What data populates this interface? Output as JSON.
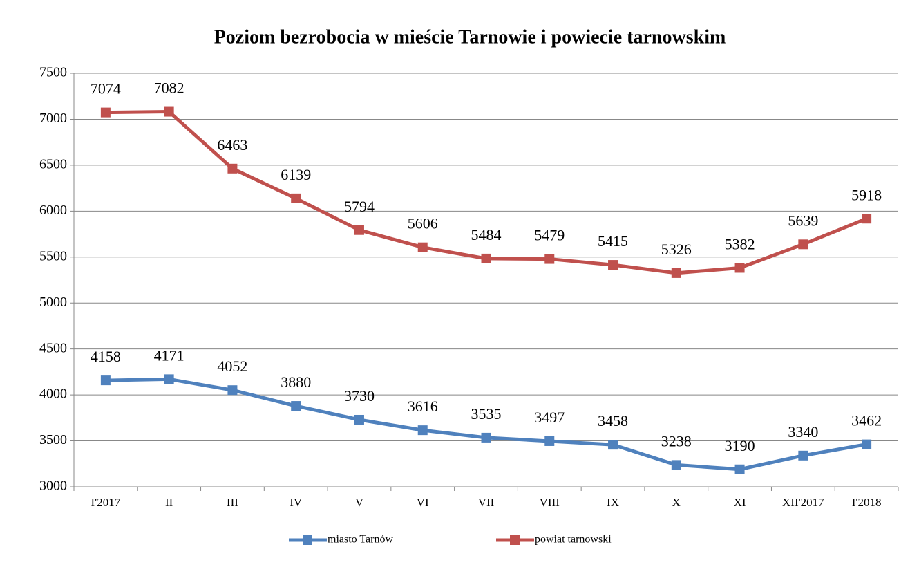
{
  "chart_data": {
    "type": "line",
    "title": "Poziom bezrobocia w mieście Tarnowie i powiecie tarnowskim",
    "categories": [
      "I'2017",
      "II",
      "III",
      "IV",
      "V",
      "VI",
      "VII",
      "VIII",
      "IX",
      "X",
      "XI",
      "XII'2017",
      "I'2018"
    ],
    "series": [
      {
        "name": "miasto Tarnów",
        "color": "#4f81bd",
        "values": [
          4158,
          4171,
          4052,
          3880,
          3730,
          3616,
          3535,
          3497,
          3458,
          3238,
          3190,
          3340,
          3462
        ]
      },
      {
        "name": "powiat tarnowski",
        "color": "#c0504d",
        "values": [
          7074,
          7082,
          6463,
          6139,
          5794,
          5606,
          5484,
          5479,
          5415,
          5326,
          5382,
          5639,
          5918
        ]
      }
    ],
    "ylim": [
      3000,
      7500
    ],
    "yticks": [
      3000,
      3500,
      4000,
      4500,
      5000,
      5500,
      6000,
      6500,
      7000,
      7500
    ],
    "grid": true,
    "legend": "bottom"
  }
}
